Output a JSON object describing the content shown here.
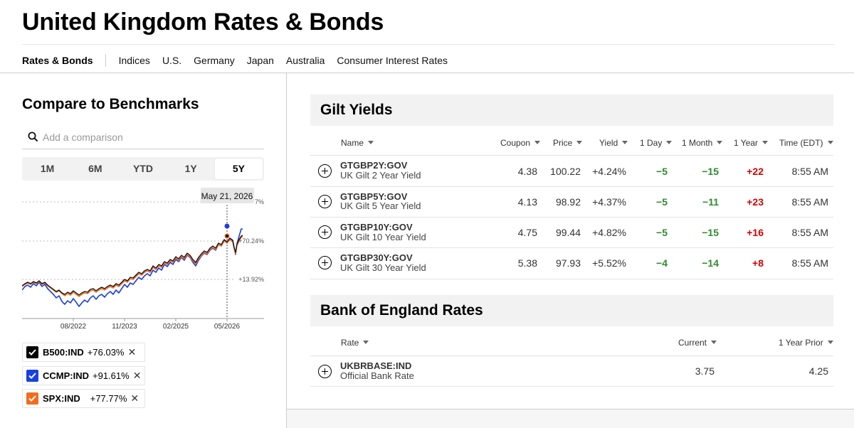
{
  "page": {
    "title": "United Kingdom Rates & Bonds"
  },
  "nav": {
    "active": "Rates & Bonds",
    "items": [
      "Indices",
      "U.S.",
      "Germany",
      "Japan",
      "Australia",
      "Consumer Interest Rates"
    ]
  },
  "compare": {
    "title": "Compare to Benchmarks",
    "search_placeholder": "Add a comparison",
    "ranges": [
      "1M",
      "6M",
      "YTD",
      "1Y",
      "5Y"
    ],
    "active_range": "5Y",
    "tooltip_date": "May 21, 2026",
    "y_ticks": [
      "+70.24%",
      "+13.92%"
    ],
    "y_top_partial": "7%",
    "x_ticks": [
      "08/2022",
      "11/2023",
      "02/2025",
      "05/2026"
    ],
    "legend": [
      {
        "symbol": "B500:IND",
        "change": "+76.03%",
        "color": "#000000"
      },
      {
        "symbol": "CCMP:IND",
        "change": "+91.61%",
        "color": "#1a3fe0"
      },
      {
        "symbol": "SPX:IND",
        "change": "+77.77%",
        "color": "#f26c1d"
      }
    ]
  },
  "gilts": {
    "title": "Gilt Yields",
    "headers": [
      "Name",
      "Coupon",
      "Price",
      "Yield",
      "1 Day",
      "1 Month",
      "1 Year",
      "Time (EDT)"
    ],
    "rows": [
      {
        "ticker": "GTGBP2Y:GOV",
        "name": "UK Gilt 2 Year Yield",
        "coupon": "4.38",
        "price": "100.22",
        "yield": "+4.24%",
        "day": "−5",
        "month": "−15",
        "year": "+22",
        "time": "8:55 AM"
      },
      {
        "ticker": "GTGBP5Y:GOV",
        "name": "UK Gilt 5 Year Yield",
        "coupon": "4.13",
        "price": "98.92",
        "yield": "+4.37%",
        "day": "−5",
        "month": "−11",
        "year": "+23",
        "time": "8:55 AM"
      },
      {
        "ticker": "GTGBP10Y:GOV",
        "name": "UK Gilt 10 Year Yield",
        "coupon": "4.75",
        "price": "99.44",
        "yield": "+4.82%",
        "day": "−5",
        "month": "−15",
        "year": "+16",
        "time": "8:55 AM"
      },
      {
        "ticker": "GTGBP30Y:GOV",
        "name": "UK Gilt 30 Year Yield",
        "coupon": "5.38",
        "price": "97.93",
        "yield": "+5.52%",
        "day": "−4",
        "month": "−14",
        "year": "+8",
        "time": "8:55 AM"
      }
    ]
  },
  "boe": {
    "title": "Bank of England Rates",
    "headers": [
      "Rate",
      "Current",
      "1 Year Prior"
    ],
    "rows": [
      {
        "ticker": "UKBRBASE:IND",
        "name": "Official Bank Rate",
        "current": "3.75",
        "prior": "4.25"
      }
    ]
  },
  "colors": {
    "gain": "#d60000",
    "loss": "#2e8b2e"
  }
}
